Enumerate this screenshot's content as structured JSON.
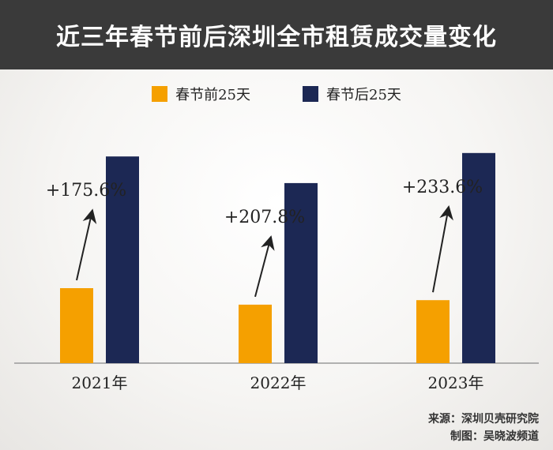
{
  "header": {
    "title": "近三年春节前后深圳全市租赁成交量变化"
  },
  "legend": [
    {
      "label": "春节前25天",
      "color": "#f5a000"
    },
    {
      "label": "春节后25天",
      "color": "#1c2854"
    }
  ],
  "chart_data": {
    "type": "bar",
    "title": "近三年春节前后深圳全市租赁成交量变化",
    "categories": [
      "2021年",
      "2022年",
      "2023年"
    ],
    "series": [
      {
        "name": "春节前25天",
        "values": [
          100,
          78,
          84
        ]
      },
      {
        "name": "春节后25天",
        "values": [
          275.6,
          240.1,
          280.2
        ]
      }
    ],
    "annotations": [
      "+175.6%",
      "+207.8%",
      "+233.6%"
    ],
    "ylim": [
      0,
      300
    ],
    "grid": false,
    "legend_position": "top"
  },
  "footer": {
    "source": "来源：深圳贝壳研究院",
    "author": "制图：吴晓波频道"
  }
}
